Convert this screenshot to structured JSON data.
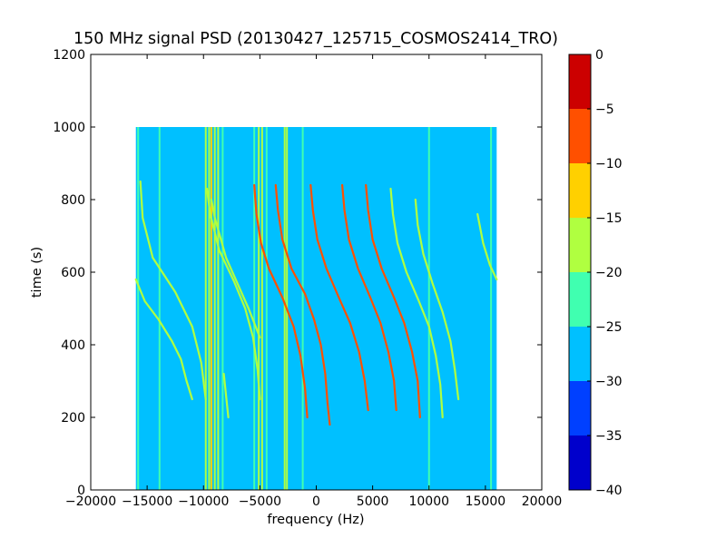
{
  "chart_data": {
    "type": "heatmap",
    "title": "150 MHz signal PSD (20130427_125715_COSMOS2414_TRO)",
    "xlabel": "frequency (Hz)",
    "ylabel": "time (s)",
    "xlim": [
      -20000,
      20000
    ],
    "ylim": [
      0,
      1200
    ],
    "xticks": [
      -20000,
      -15000,
      -10000,
      -5000,
      0,
      5000,
      10000,
      15000,
      20000
    ],
    "xtick_labels": [
      "−20000",
      "−15000",
      "−10000",
      "−5000",
      "0",
      "5000",
      "10000",
      "15000",
      "20000"
    ],
    "yticks": [
      0,
      200,
      400,
      600,
      800,
      1000,
      1200
    ],
    "ytick_labels": [
      "0",
      "200",
      "400",
      "600",
      "800",
      "1000",
      "1200"
    ],
    "data_extent": {
      "x": [
        -16000,
        16000
      ],
      "y": [
        0,
        1000
      ]
    },
    "background_level": "-30 to -25",
    "background_color": "#00c0ff",
    "colorbar": {
      "levels": [
        -40,
        -35,
        -30,
        -25,
        -20,
        -15,
        -10,
        -5,
        0
      ],
      "tick_labels": [
        "−40",
        "−35",
        "−30",
        "−25",
        "−20",
        "−15",
        "−10",
        "−5",
        "0"
      ],
      "colors": [
        "#0000cc",
        "#0040ff",
        "#00c0ff",
        "#40ffb0",
        "#b0ff40",
        "#ffd000",
        "#ff5000",
        "#cc0000"
      ]
    },
    "vertical_lines": [
      {
        "x": -15800,
        "y": [
          0,
          1000
        ],
        "level_color": "#40ffb0"
      },
      {
        "x": -13900,
        "y": [
          0,
          1000
        ],
        "level_color": "#40ffb0"
      },
      {
        "x": -9800,
        "y": [
          0,
          1000
        ],
        "level_color": "#b0ff40"
      },
      {
        "x": -9500,
        "y": [
          0,
          1000
        ],
        "level_color": "#b0ff40"
      },
      {
        "x": -9300,
        "y": [
          0,
          1000
        ],
        "level_color": "#ffd000"
      },
      {
        "x": -9000,
        "y": [
          0,
          1000
        ],
        "level_color": "#b0ff40"
      },
      {
        "x": -8700,
        "y": [
          0,
          1000
        ],
        "level_color": "#b0ff40"
      },
      {
        "x": -8300,
        "y": [
          0,
          1000
        ],
        "level_color": "#40ffb0"
      },
      {
        "x": -5500,
        "y": [
          0,
          1000
        ],
        "level_color": "#40ffb0"
      },
      {
        "x": -5100,
        "y": [
          0,
          1000
        ],
        "level_color": "#b0ff40"
      },
      {
        "x": -4800,
        "y": [
          0,
          1000
        ],
        "level_color": "#b0ff40"
      },
      {
        "x": -4400,
        "y": [
          0,
          1000
        ],
        "level_color": "#40ffb0"
      },
      {
        "x": -2800,
        "y": [
          0,
          1000
        ],
        "level_color": "#b0ff40"
      },
      {
        "x": -2600,
        "y": [
          0,
          1000
        ],
        "level_color": "#b0ff40"
      },
      {
        "x": -1200,
        "y": [
          0,
          1000
        ],
        "level_color": "#40ffb0"
      },
      {
        "x": 10000,
        "y": [
          0,
          1000
        ],
        "level_color": "#40ffb0"
      },
      {
        "x": 15500,
        "y": [
          0,
          1000
        ],
        "level_color": "#40ffb0"
      }
    ],
    "series": [
      {
        "level_color": "#b0ff40",
        "points": [
          [
            -15600,
            850
          ],
          [
            -15400,
            750
          ],
          [
            -14500,
            640
          ],
          [
            -12500,
            545
          ],
          [
            -11000,
            450
          ],
          [
            -10200,
            350
          ],
          [
            -9800,
            250
          ]
        ]
      },
      {
        "level_color": "#b0ff40",
        "points": [
          [
            -16000,
            580
          ],
          [
            -15200,
            520
          ],
          [
            -14000,
            470
          ],
          [
            -12800,
            410
          ],
          [
            -12000,
            360
          ],
          [
            -11500,
            300
          ],
          [
            -11000,
            250
          ]
        ]
      },
      {
        "level_color": "#b0ff40",
        "points": [
          [
            -9700,
            830
          ],
          [
            -9400,
            760
          ],
          [
            -8600,
            660
          ],
          [
            -7300,
            575
          ],
          [
            -6300,
            500
          ],
          [
            -5600,
            420
          ],
          [
            -5200,
            330
          ],
          [
            -5000,
            250
          ]
        ]
      },
      {
        "level_color": "#b0ff40",
        "points": [
          [
            -9300,
            800
          ],
          [
            -9000,
            750
          ],
          [
            -8000,
            640
          ],
          [
            -6000,
            500
          ],
          [
            -5000,
            420
          ]
        ]
      },
      {
        "level_color": "#ff5000",
        "points": [
          [
            -5500,
            840
          ],
          [
            -5300,
            760
          ],
          [
            -4900,
            680
          ],
          [
            -4200,
            610
          ],
          [
            -3000,
            530
          ],
          [
            -2000,
            450
          ],
          [
            -1400,
            370
          ],
          [
            -1000,
            280
          ],
          [
            -800,
            200
          ]
        ]
      },
      {
        "level_color": "#ff5000",
        "points": [
          [
            -3600,
            840
          ],
          [
            -3400,
            770
          ],
          [
            -3000,
            690
          ],
          [
            -2200,
            610
          ],
          [
            -1000,
            540
          ],
          [
            -200,
            470
          ],
          [
            400,
            400
          ],
          [
            800,
            320
          ],
          [
            1000,
            240
          ],
          [
            1200,
            180
          ]
        ]
      },
      {
        "level_color": "#ff5000",
        "points": [
          [
            -500,
            840
          ],
          [
            -300,
            770
          ],
          [
            100,
            690
          ],
          [
            900,
            610
          ],
          [
            2000,
            530
          ],
          [
            3000,
            460
          ],
          [
            3800,
            380
          ],
          [
            4300,
            300
          ],
          [
            4600,
            220
          ]
        ]
      },
      {
        "level_color": "#ff5000",
        "points": [
          [
            2300,
            840
          ],
          [
            2500,
            770
          ],
          [
            2900,
            690
          ],
          [
            3700,
            610
          ],
          [
            4800,
            530
          ],
          [
            5700,
            460
          ],
          [
            6400,
            380
          ],
          [
            6900,
            300
          ],
          [
            7100,
            220
          ]
        ]
      },
      {
        "level_color": "#ff5000",
        "points": [
          [
            4400,
            840
          ],
          [
            4600,
            770
          ],
          [
            5000,
            690
          ],
          [
            5800,
            610
          ],
          [
            6900,
            530
          ],
          [
            7800,
            460
          ],
          [
            8500,
            380
          ],
          [
            9000,
            300
          ],
          [
            9200,
            200
          ]
        ]
      },
      {
        "level_color": "#b0ff40",
        "points": [
          [
            6600,
            830
          ],
          [
            6800,
            760
          ],
          [
            7200,
            680
          ],
          [
            8000,
            600
          ],
          [
            9100,
            520
          ],
          [
            10000,
            450
          ],
          [
            10600,
            370
          ],
          [
            11000,
            290
          ],
          [
            11200,
            200
          ]
        ]
      },
      {
        "level_color": "#b0ff40",
        "points": [
          [
            8800,
            800
          ],
          [
            9000,
            730
          ],
          [
            9500,
            650
          ],
          [
            10300,
            570
          ],
          [
            11200,
            490
          ],
          [
            11900,
            410
          ],
          [
            12300,
            330
          ],
          [
            12600,
            250
          ]
        ]
      },
      {
        "level_color": "#b0ff40",
        "points": [
          [
            14300,
            760
          ],
          [
            14800,
            680
          ],
          [
            15400,
            620
          ],
          [
            16000,
            580
          ]
        ]
      },
      {
        "level_color": "#b0ff40",
        "points": [
          [
            -8200,
            320
          ],
          [
            -7800,
            200
          ]
        ]
      }
    ]
  }
}
